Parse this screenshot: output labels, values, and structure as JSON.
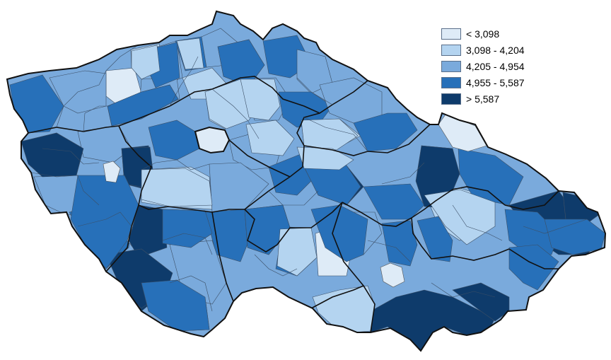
{
  "legend": {
    "items": [
      {
        "label": "< 3,098",
        "color": "#deebf7"
      },
      {
        "label": "3,098 - 4,204",
        "color": "#b4d4f0"
      },
      {
        "label": "4,205 - 4,954",
        "color": "#7aaadc"
      },
      {
        "label": "4,955 - 5,587",
        "color": "#2770b9"
      },
      {
        "label": "> 5,587",
        "color": "#0e3b6b"
      }
    ]
  },
  "map": {
    "country": "Czech Republic",
    "region_classes": [
      "c2",
      "c3",
      "c4",
      "c3",
      "c5",
      "c4",
      "c3",
      "c2",
      "c1",
      "c3",
      "c4",
      "c4",
      "c3",
      "c5",
      "c2",
      "c3",
      "c4",
      "c3",
      "c2",
      "c4",
      "c3",
      "c5",
      "c4",
      "c3",
      "c4",
      "c2",
      "c3",
      "c4",
      "c5",
      "c3",
      "c4",
      "c2",
      "c3",
      "c4",
      "c3",
      "c5",
      "c4",
      "c3",
      "c4",
      "c1",
      "c3",
      "c4",
      "c2",
      "c3",
      "c4",
      "c5",
      "c3"
    ]
  }
}
